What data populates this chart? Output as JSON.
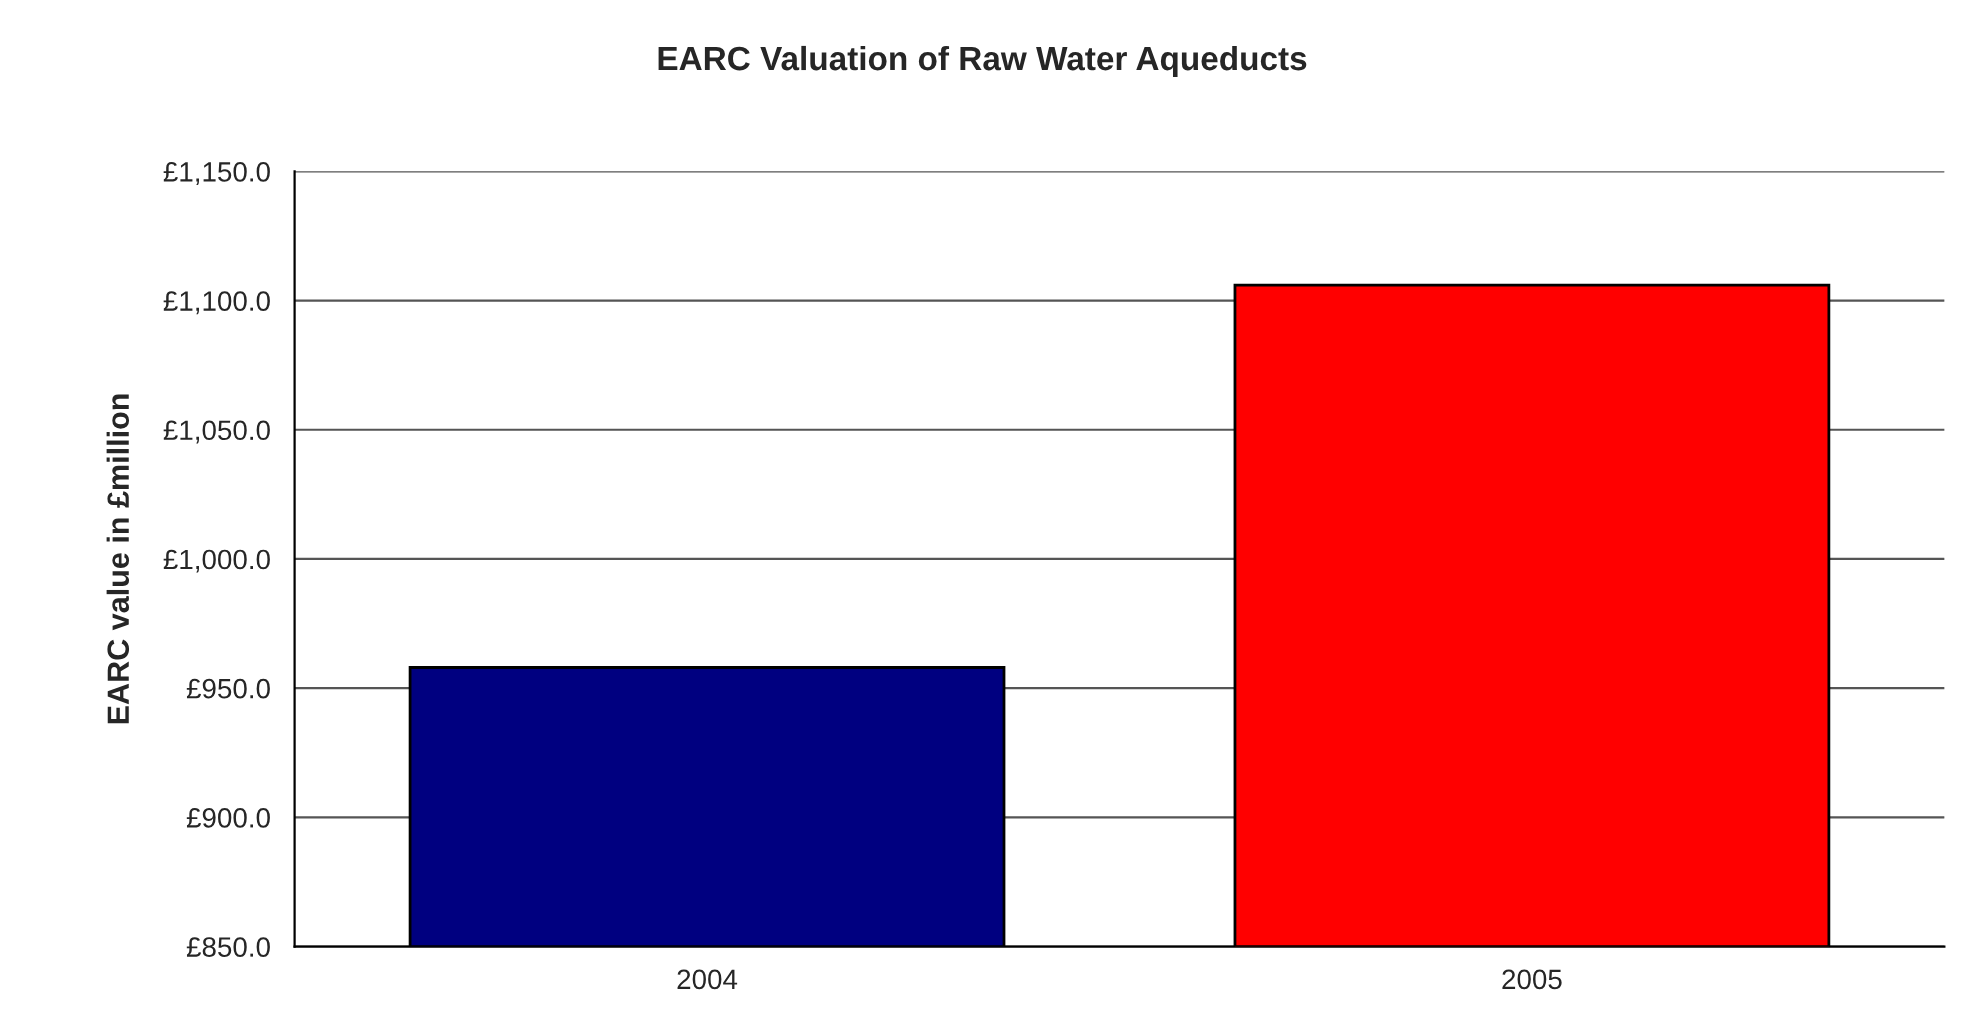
{
  "chart_data": {
    "type": "bar",
    "title": "EARC Valuation of Raw Water Aqueducts",
    "ylabel": "EARC value in £million",
    "categories": [
      "2004",
      "2005"
    ],
    "values": [
      958,
      1106
    ],
    "colors": [
      "#000080",
      "#ff0000"
    ],
    "ylim": [
      850,
      1150
    ],
    "yticks": [
      {
        "value": 850,
        "label": "£850.0"
      },
      {
        "value": 900,
        "label": "£900.0"
      },
      {
        "value": 950,
        "label": "£950.0"
      },
      {
        "value": 1000,
        "label": "£1,000.0"
      },
      {
        "value": 1050,
        "label": "£1,050.0"
      },
      {
        "value": 1100,
        "label": "£1,100.0"
      },
      {
        "value": 1150,
        "label": "£1,150.0"
      }
    ],
    "grid": "y",
    "legend": false
  }
}
